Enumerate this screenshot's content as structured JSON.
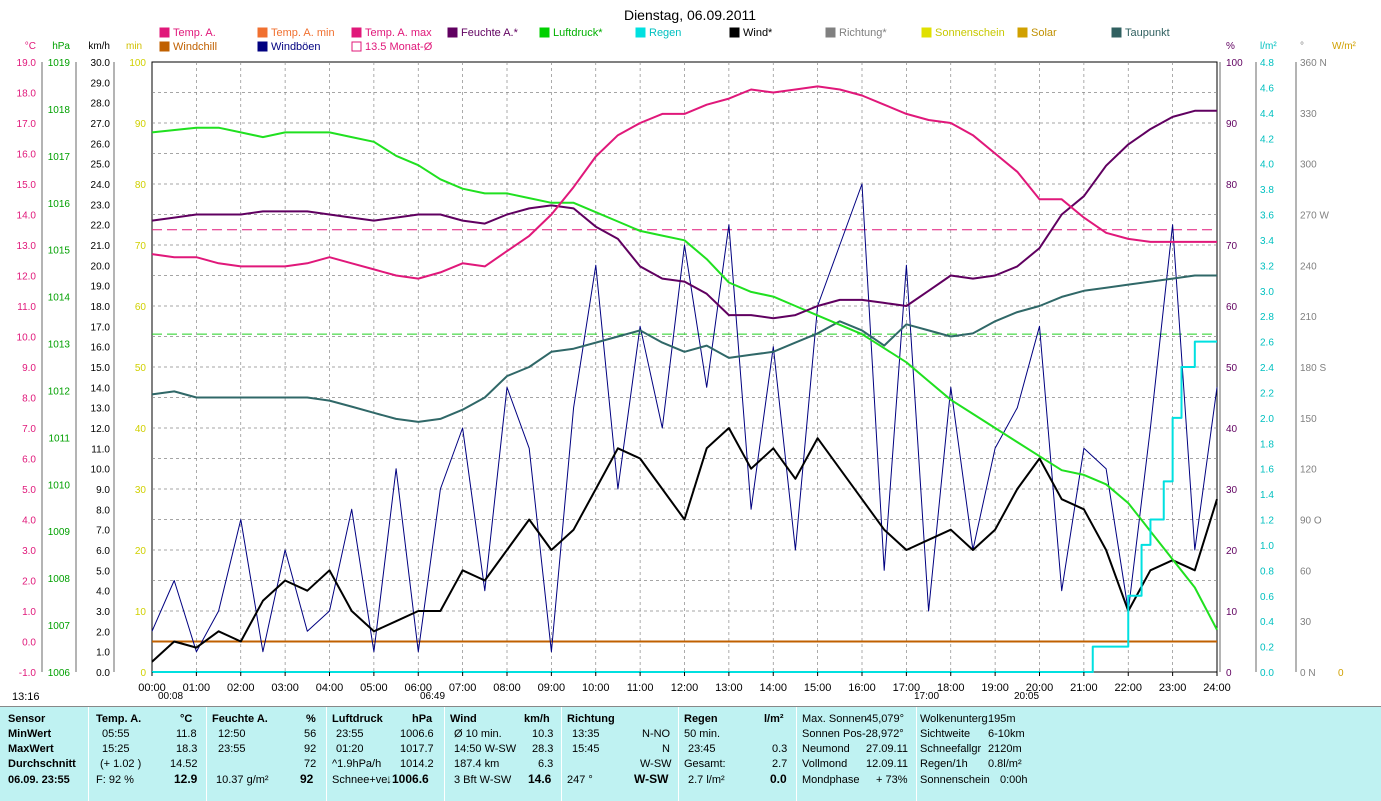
{
  "chart_data": {
    "type": "line",
    "title": "Dienstag, 06.09.2011",
    "x_ticks": [
      "00:00",
      "01:00",
      "02:00",
      "03:00",
      "04:00",
      "05:00",
      "06:00",
      "07:00",
      "08:00",
      "09:00",
      "10:00",
      "11:00",
      "12:00",
      "13:00",
      "14:00",
      "15:00",
      "16:00",
      "17:00",
      "18:00",
      "19:00",
      "20:00",
      "21:00",
      "22:00",
      "23:00",
      "24:00"
    ],
    "x_markers": [
      "00:08",
      "06:49",
      "17:00",
      "20:05"
    ],
    "legend": [
      {
        "name": "Temp. A.",
        "color": "#e0187a"
      },
      {
        "name": "Windchill",
        "color": "#c06000"
      },
      {
        "name": "Temp. A. min",
        "color": "#f07030"
      },
      {
        "name": "Windböen",
        "color": "#000080"
      },
      {
        "name": "Temp. A. max",
        "color": "#e0187a"
      },
      {
        "name": "13.5 Monat-Ø",
        "color": "#e0187a"
      },
      {
        "name": "Feuchte A.*",
        "color": "#600060"
      },
      {
        "name": "Luftdruck*",
        "color": "#00d000"
      },
      {
        "name": "Regen",
        "color": "#00e0e0"
      },
      {
        "name": "Wind*",
        "color": "#000000"
      },
      {
        "name": "Richtung*",
        "color": "#808080"
      },
      {
        "name": "Sonnenschein",
        "color": "#e0e000"
      },
      {
        "name": "Solar",
        "color": "#d0a000"
      },
      {
        "name": "Taupunkt",
        "color": "#306060"
      }
    ],
    "axes": {
      "temp": {
        "label": "°C",
        "min": -1.0,
        "max": 19.0,
        "ticks": [
          "19.0",
          "18.0",
          "17.0",
          "16.0",
          "15.0",
          "14.0",
          "13.0",
          "12.0",
          "11.0",
          "10.0",
          "9.0",
          "8.0",
          "7.0",
          "6.0",
          "5.0",
          "4.0",
          "3.0",
          "2.0",
          "1.0",
          "0.0",
          "-1.0"
        ],
        "color": "#e0187a"
      },
      "pressure": {
        "label": "hPa",
        "min": 1006,
        "max": 1019,
        "ticks": [
          "1019",
          "1018",
          "1017",
          "1016",
          "1015",
          "1014",
          "1013",
          "1012",
          "1011",
          "1010",
          "1009",
          "1008",
          "1007",
          "1006"
        ],
        "color": "#00a000"
      },
      "wind": {
        "label": "km/h",
        "min": 0.0,
        "max": 30.0,
        "ticks": [
          "30.0",
          "29.0",
          "28.0",
          "27.0",
          "26.0",
          "25.0",
          "24.0",
          "23.0",
          "22.0",
          "21.0",
          "20.0",
          "19.0",
          "18.0",
          "17.0",
          "16.0",
          "15.0",
          "14.0",
          "13.0",
          "12.0",
          "11.0",
          "10.0",
          "9.0",
          "8.0",
          "7.0",
          "6.0",
          "5.0",
          "4.0",
          "3.0",
          "2.0",
          "1.0",
          "0.0"
        ],
        "color": "#000000"
      },
      "minutes": {
        "label": "min",
        "color": "#d0c000"
      },
      "percent_left": {
        "ticks": [
          "100",
          "90",
          "80",
          "70",
          "60",
          "50",
          "40",
          "30",
          "20",
          "10",
          "0"
        ],
        "color": "#d0d000"
      },
      "humidity": {
        "label": "%",
        "ticks": [
          "100",
          "90",
          "80",
          "70",
          "60",
          "50",
          "40",
          "30",
          "20",
          "10",
          "0"
        ],
        "color": "#600060"
      },
      "rain": {
        "label": "l/m²",
        "min": 0,
        "max": 4.8,
        "ticks": [
          "4.8",
          "4.6",
          "4.4",
          "4.2",
          "4.0",
          "3.8",
          "3.6",
          "3.4",
          "3.2",
          "3.0",
          "2.8",
          "2.6",
          "2.4",
          "2.2",
          "2.0",
          "1.8",
          "1.6",
          "1.4",
          "1.2",
          "1.0",
          "0.8",
          "0.6",
          "0.4",
          "0.2",
          "0.0"
        ],
        "color": "#00c0c0"
      },
      "direction": {
        "label": "°",
        "ticks": [
          "360 N",
          "330",
          "300",
          "270 W",
          "240",
          "210",
          "180 S",
          "150",
          "120",
          "90  O",
          "60",
          "30",
          "0   N"
        ],
        "color": "#808080"
      },
      "solar": {
        "label": "W/m²",
        "ticks": [
          "0"
        ],
        "color": "#d0a000"
      }
    },
    "series": [
      {
        "name": "Temp. A.",
        "axis": "temp",
        "x": [
          0,
          0.5,
          1,
          1.5,
          2,
          2.5,
          3,
          3.5,
          4,
          4.5,
          5,
          5.5,
          6,
          6.5,
          7,
          7.5,
          8,
          8.5,
          9,
          9.5,
          10,
          10.5,
          11,
          11.5,
          12,
          12.5,
          13,
          13.5,
          14,
          14.5,
          15,
          15.5,
          16,
          16.5,
          17,
          17.5,
          18,
          18.5,
          19,
          19.5,
          20,
          20.5,
          21,
          21.5,
          22,
          22.5,
          23,
          23.5,
          24
        ],
        "y": [
          12.7,
          12.6,
          12.6,
          12.4,
          12.3,
          12.3,
          12.3,
          12.4,
          12.6,
          12.4,
          12.2,
          12.0,
          11.9,
          12.1,
          12.4,
          12.3,
          12.8,
          13.3,
          14.0,
          14.9,
          15.9,
          16.6,
          17.0,
          17.3,
          17.3,
          17.6,
          17.8,
          18.1,
          18.0,
          18.1,
          18.2,
          18.1,
          17.9,
          17.6,
          17.3,
          17.1,
          17.0,
          16.6,
          16.0,
          15.4,
          14.5,
          14.5,
          13.9,
          13.4,
          13.2,
          13.1,
          13.1,
          13.1,
          13.1
        ]
      },
      {
        "name": "Feuchte A.*",
        "axis": "humidity",
        "x": [
          0,
          0.5,
          1,
          1.5,
          2,
          2.5,
          3,
          3.5,
          4,
          4.5,
          5,
          5.5,
          6,
          6.5,
          7,
          7.5,
          8,
          8.5,
          9,
          9.5,
          10,
          10.5,
          11,
          11.5,
          12,
          12.5,
          13,
          13.5,
          14,
          14.5,
          15,
          15.5,
          16,
          16.5,
          17,
          17.5,
          18,
          18.5,
          19,
          19.5,
          20,
          20.5,
          21,
          21.5,
          22,
          22.5,
          23,
          23.5,
          24
        ],
        "y": [
          74,
          74.5,
          75,
          75,
          75,
          75.5,
          75.5,
          75.5,
          75,
          74.5,
          74,
          74.5,
          75,
          75,
          74,
          73.5,
          75,
          76,
          76.5,
          76,
          73,
          71,
          66.5,
          64.5,
          64,
          62,
          58.5,
          58.5,
          58,
          58.5,
          60,
          61,
          61,
          60.5,
          60,
          62.5,
          65,
          64.5,
          65,
          66.5,
          69.5,
          75,
          78,
          83,
          86.5,
          89,
          91,
          92,
          92
        ]
      },
      {
        "name": "Luftdruck*",
        "axis": "pressure",
        "x": [
          0,
          1,
          1.5,
          2,
          2.5,
          3,
          3.5,
          4,
          4.5,
          5,
          5.5,
          6,
          6.5,
          7,
          7.5,
          8,
          8.5,
          9,
          9.5,
          10,
          10.5,
          11,
          11.5,
          12,
          12.5,
          13,
          13.5,
          14,
          14.5,
          15,
          15.5,
          16,
          16.5,
          17,
          17.5,
          18,
          18.5,
          19,
          19.5,
          20,
          20.5,
          21,
          21.5,
          22,
          22.5,
          23,
          23.5,
          24
        ],
        "y": [
          1017.5,
          1017.6,
          1017.6,
          1017.5,
          1017.4,
          1017.5,
          1017.5,
          1017.5,
          1017.4,
          1017.3,
          1017.0,
          1016.8,
          1016.5,
          1016.3,
          1016.2,
          1016.2,
          1016.1,
          1016.0,
          1016.0,
          1015.8,
          1015.6,
          1015.4,
          1015.3,
          1015.2,
          1014.8,
          1014.3,
          1014.1,
          1014.0,
          1013.8,
          1013.6,
          1013.4,
          1013.2,
          1012.9,
          1012.6,
          1012.2,
          1011.8,
          1011.5,
          1011.2,
          1010.9,
          1010.6,
          1010.3,
          1010.2,
          1010.0,
          1009.6,
          1009.0,
          1008.4,
          1007.8,
          1006.9
        ]
      },
      {
        "name": "Taupunkt",
        "axis": "temp",
        "x": [
          0,
          0.5,
          1,
          1.5,
          2,
          2.5,
          3,
          3.5,
          4,
          4.5,
          5,
          5.5,
          6,
          6.5,
          7,
          7.5,
          8,
          8.5,
          9,
          9.5,
          10,
          10.5,
          11,
          11.5,
          12,
          12.5,
          13,
          13.5,
          14,
          14.5,
          15,
          15.5,
          16,
          16.5,
          17,
          17.5,
          18,
          18.5,
          19,
          19.5,
          20,
          20.5,
          21,
          21.5,
          22,
          22.5,
          23,
          23.5,
          24
        ],
        "y": [
          8.1,
          8.2,
          8.0,
          8.0,
          8.0,
          8.0,
          8.0,
          8.0,
          7.9,
          7.7,
          7.5,
          7.3,
          7.2,
          7.3,
          7.6,
          8.0,
          8.7,
          9.0,
          9.5,
          9.6,
          9.8,
          10.0,
          10.2,
          9.8,
          9.5,
          9.7,
          9.3,
          9.4,
          9.5,
          9.8,
          10.1,
          10.5,
          10.2,
          9.7,
          10.4,
          10.2,
          10.0,
          10.1,
          10.5,
          10.8,
          11.0,
          11.3,
          11.5,
          11.6,
          11.7,
          11.8,
          11.9,
          12.0,
          12.0
        ]
      },
      {
        "name": "Wind*",
        "axis": "wind",
        "x": [
          0,
          0.5,
          1,
          1.5,
          2,
          2.5,
          3,
          3.5,
          4,
          4.5,
          5,
          5.5,
          6,
          6.5,
          7,
          7.5,
          8,
          8.5,
          9,
          9.5,
          10,
          10.5,
          11,
          11.5,
          12,
          12.5,
          13,
          13.5,
          14,
          14.5,
          15,
          15.5,
          16,
          16.5,
          17,
          17.5,
          18,
          18.5,
          19,
          19.5,
          20,
          20.5,
          21,
          21.5,
          22,
          22.5,
          23,
          23.5,
          24
        ],
        "y": [
          0.5,
          1.5,
          1.2,
          2.0,
          1.5,
          3.5,
          4.5,
          4.0,
          5.0,
          3.0,
          2.0,
          2.5,
          3.0,
          3.0,
          5.0,
          4.5,
          6.0,
          7.5,
          6.0,
          7.0,
          9.0,
          11.0,
          10.5,
          9.0,
          7.5,
          11.0,
          12.0,
          10.0,
          11.0,
          9.5,
          11.5,
          10.0,
          8.5,
          7.0,
          6.0,
          6.5,
          7.0,
          6.0,
          7.0,
          9.0,
          10.5,
          8.5,
          8.0,
          6.0,
          3.0,
          5.0,
          5.5,
          5.0,
          8.5
        ]
      },
      {
        "name": "Windböen",
        "axis": "wind",
        "x": [
          0,
          0.5,
          1,
          1.5,
          2,
          2.5,
          3,
          3.5,
          4,
          4.5,
          5,
          5.5,
          6,
          6.5,
          7,
          7.5,
          8,
          8.5,
          9,
          9.5,
          10,
          10.5,
          11,
          11.5,
          12,
          12.5,
          13,
          13.5,
          14,
          14.5,
          15,
          15.5,
          16,
          16.5,
          17,
          17.5,
          18,
          18.5,
          19,
          19.5,
          20,
          20.5,
          21,
          21.5,
          22,
          22.5,
          23,
          23.5,
          24
        ],
        "y": [
          2.0,
          4.5,
          1.0,
          3.0,
          7.5,
          1.0,
          6.0,
          2.0,
          3.0,
          8.0,
          1.0,
          10.0,
          1.0,
          9.0,
          12.0,
          4.0,
          14.0,
          11.0,
          1.0,
          13.0,
          20.0,
          9.0,
          17.0,
          12.0,
          21.0,
          14.0,
          22.0,
          8.0,
          16.0,
          6.0,
          18.0,
          21.0,
          24.0,
          5.0,
          20.0,
          3.0,
          14.0,
          6.0,
          11.0,
          13.0,
          17.0,
          4.0,
          11.0,
          10.0,
          3.0,
          12.0,
          22.0,
          6.0,
          14.0
        ]
      },
      {
        "name": "Regen",
        "axis": "rain",
        "x": [
          0,
          21.0,
          21.2,
          21.7,
          22.0,
          22.3,
          22.5,
          22.8,
          23.0,
          23.2,
          23.4,
          23.5,
          23.7,
          24
        ],
        "y": [
          0,
          0,
          0.2,
          0.2,
          0.6,
          1.0,
          1.2,
          1.5,
          2.0,
          2.4,
          2.4,
          2.6,
          2.6,
          2.6
        ]
      }
    ],
    "reference_lines": [
      {
        "name": "13.5 Monat-Ø",
        "axis": "temp",
        "value": 13.5
      },
      {
        "name": "Luftdruck ref",
        "axis": "pressure",
        "value": 1013.2
      },
      {
        "name": "Windchill",
        "axis": "temp",
        "value": 0.0
      }
    ]
  },
  "panel": {
    "sensor": {
      "h": "Sensor",
      "min": "MinWert",
      "max": "MaxWert",
      "avg": "Durchschnitt",
      "now": "06.09. 23:55"
    },
    "temp": {
      "h": "Temp. A.",
      "unit": "°C",
      "min_t": "05:55",
      "min_v": "11.8",
      "max_t": "15:25",
      "max_v": "18.3",
      "avg_t": "(+ 1.02 )",
      "avg_v": "14.52",
      "now_l": "F: 92 %",
      "now_v": "12.9"
    },
    "hum": {
      "h": "Feuchte A.",
      "unit": "%",
      "min_t": "12:50",
      "min_v": "56",
      "max_t": "23:55",
      "max_v": "92",
      "avg_v": "72",
      "now_l": "10.37 g/m²",
      "now_v": "92"
    },
    "press": {
      "h": "Luftdruck",
      "unit": "hPa",
      "min_t": "23:55",
      "min_v": "1006.6",
      "max_t": "01:20",
      "max_v": "1017.7",
      "avg_t": "^1.9hPa/h",
      "avg_v": "1014.2",
      "now_l": "Schnee+ve",
      "now_v": "↓1006.6"
    },
    "wind": {
      "h": "Wind",
      "unit": "km/h",
      "r1l": "Ø 10 min.",
      "r1v": "10.3",
      "r2l": "14:50  W-SW",
      "r2v": "28.3",
      "r3l": "187.4 km",
      "r3v": "6.3",
      "r4l": "3 Bft W-SW",
      "r4v": "14.6"
    },
    "dir": {
      "h": "Richtung",
      "r1l": "13:35",
      "r1v": "N-NO",
      "r2l": "15:45",
      "r2v": "N",
      "r3v": "W-SW",
      "r4l": "247 °",
      "r4v": "W-SW"
    },
    "rain": {
      "h": "Regen",
      "unit": "l/m²",
      "r1l": "50 min.",
      "r2l": "23:45",
      "r2v": "0.3",
      "r3l": "Gesamt:",
      "r3v": "2.7",
      "r4l": "2.7 l/m²",
      "r4v": "0.0"
    },
    "sun": {
      "r1l": "Max. Sonnen",
      "r1v": "45,079°",
      "r2l": "Sonnen Pos",
      "r2v": "-28,972°",
      "r3l": "Neumond",
      "r3v": "27.09.11",
      "r4l": "Vollmond",
      "r4v": "12.09.11",
      "r5l": "Mondphase",
      "r5v": "+ 73%"
    },
    "misc": {
      "r1l": "Wolkenunterg",
      "r1v": "195m",
      "r2l": "Sichtweite",
      "r2v": "6-10km",
      "r3l": "Schneefallgr",
      "r3v": "2120m",
      "r4l": "Regen/1h",
      "r4v": "0.8l/m²",
      "r5l": "Sonnenschein",
      "r5v": "0:00h"
    },
    "time_label": "13:16"
  }
}
